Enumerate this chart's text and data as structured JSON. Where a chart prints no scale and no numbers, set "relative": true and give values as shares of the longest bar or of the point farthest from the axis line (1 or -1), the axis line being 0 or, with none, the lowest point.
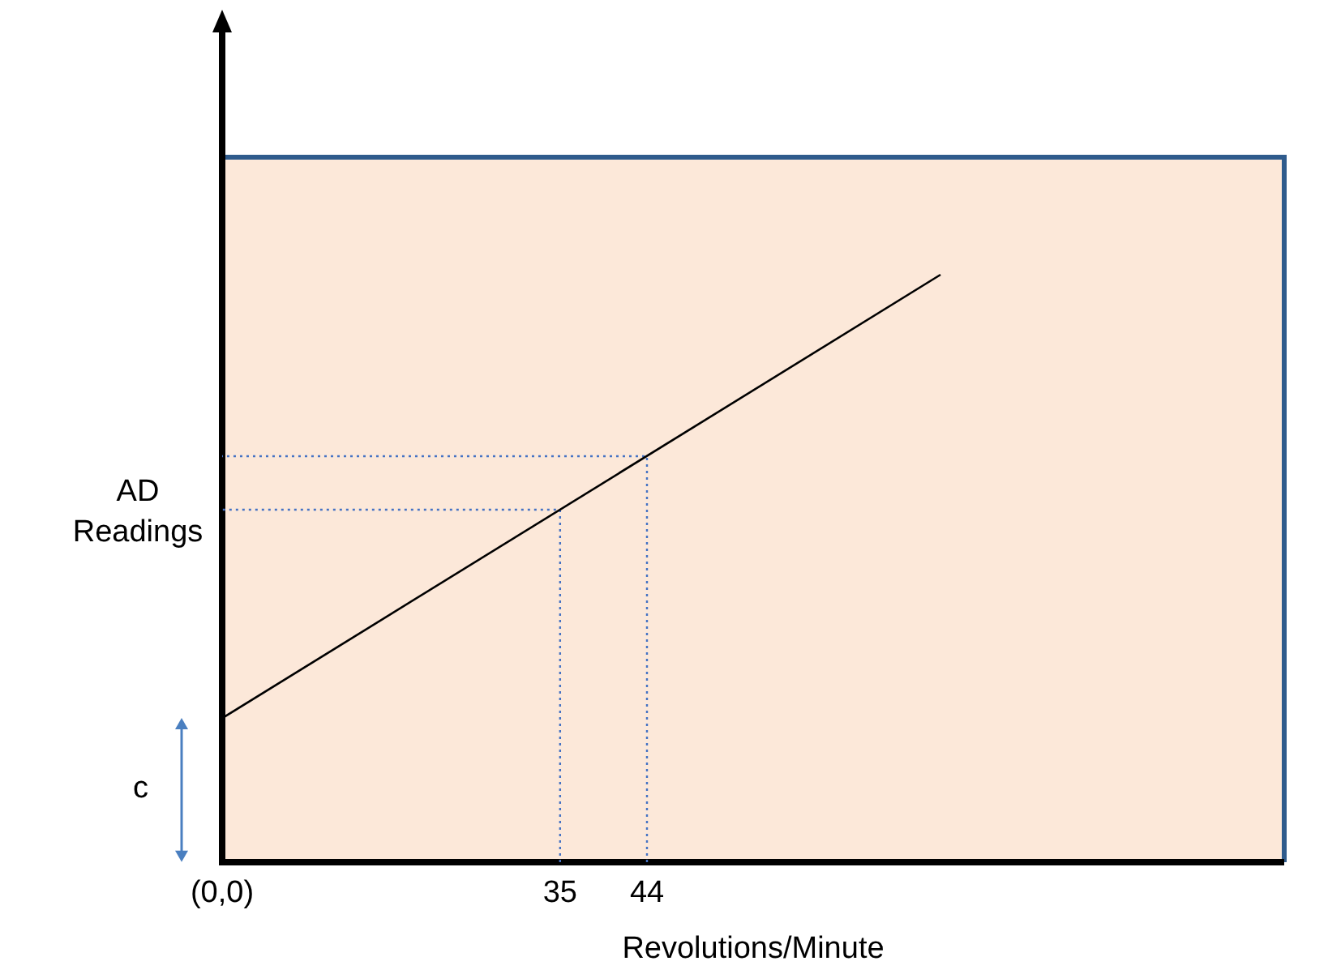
{
  "chart_data": {
    "type": "line",
    "relative": true,
    "xlabel": "Revolutions/Minute",
    "ylabel": "AD Readings",
    "xlim": [
      0,
      110
    ],
    "xticks": [
      {
        "value": 0,
        "label": "(0,0)"
      },
      35,
      44
    ],
    "legend": false,
    "marker": "none",
    "annotations": [
      "c"
    ],
    "series": [
      {
        "type": "line",
        "color": "#000000",
        "x": [
          0,
          74.4
        ],
        "values": [
          0.245,
          1
        ]
      },
      {
        "type": "line",
        "color": "#4472c4",
        "line_style": "dotted",
        "x": [
          35,
          35,
          0
        ],
        "values": [
          0,
          0.6,
          0.6
        ]
      },
      {
        "type": "line",
        "color": "#4472c4",
        "line_style": "dotted",
        "x": [
          44,
          44,
          0
        ],
        "values": [
          0,
          0.691,
          0.691
        ]
      }
    ]
  }
}
